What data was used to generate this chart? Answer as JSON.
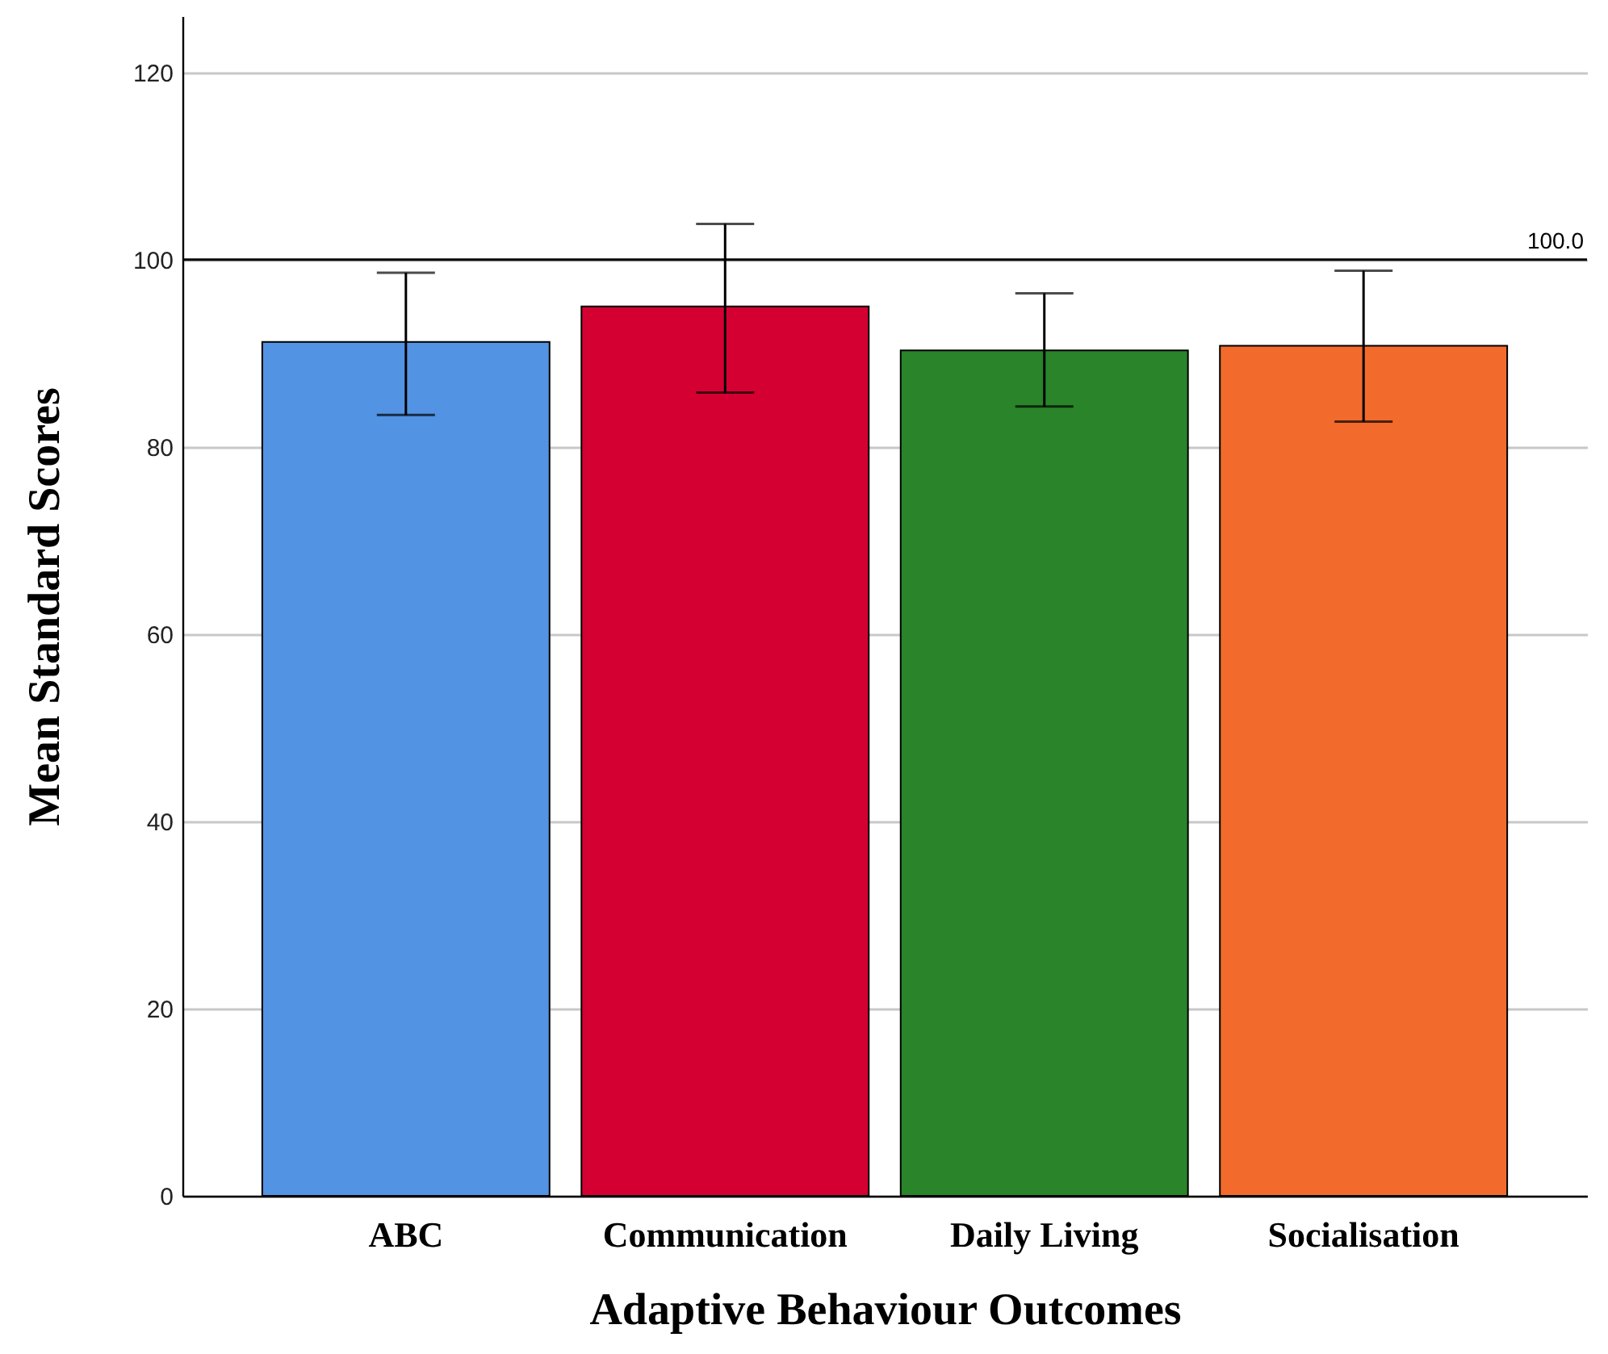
{
  "chart_data": {
    "type": "bar",
    "xlabel": "Adaptive Behaviour Outcomes",
    "ylabel": "Mean Standard Scores",
    "categories": [
      "ABC",
      "Communication",
      "Daily Living",
      "Socialisation"
    ],
    "values": [
      91.2,
      95.0,
      90.3,
      90.8
    ],
    "colors": [
      "#5393e3",
      "#d50032",
      "#2a842a",
      "#f26b2d"
    ],
    "errors": [
      [
        83.4,
        98.6
      ],
      [
        85.8,
        103.8
      ],
      [
        84.3,
        96.4
      ],
      [
        82.7,
        98.8
      ]
    ],
    "ylim": [
      0,
      126
    ],
    "yticks": [
      0,
      20,
      40,
      60,
      80,
      100,
      120
    ],
    "grid": "y",
    "ref_lines": [
      {
        "axis": "y",
        "value": 100,
        "label": "100.0"
      }
    ]
  }
}
